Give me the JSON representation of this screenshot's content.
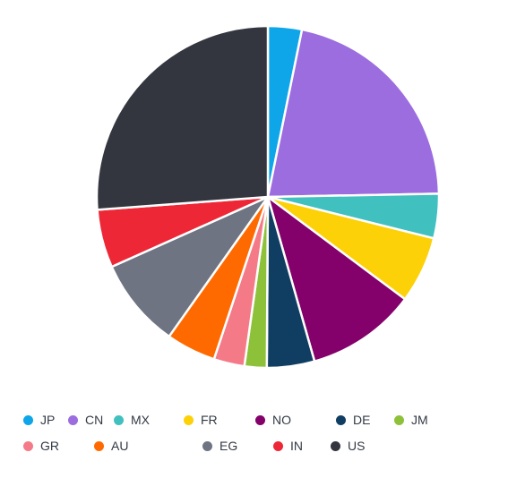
{
  "chart_data": {
    "type": "pie",
    "slices": [
      {
        "label": "JP",
        "value": 3.2,
        "color": "#0ea5e9"
      },
      {
        "label": "CN",
        "value": 21.5,
        "color": "#9b6ddf"
      },
      {
        "label": "MX",
        "value": 4.2,
        "color": "#40c0bf"
      },
      {
        "label": "FR",
        "value": 6.3,
        "color": "#fdd108"
      },
      {
        "label": "NO",
        "value": 10.4,
        "color": "#84006a"
      },
      {
        "label": "DE",
        "value": 4.5,
        "color": "#103d62"
      },
      {
        "label": "JM",
        "value": 2.1,
        "color": "#8ec13a"
      },
      {
        "label": "GR",
        "value": 2.9,
        "color": "#f57a87"
      },
      {
        "label": "AU",
        "value": 4.7,
        "color": "#ff6a00"
      },
      {
        "label": "EG",
        "value": 8.5,
        "color": "#6e7482"
      },
      {
        "label": "IN",
        "value": 5.5,
        "color": "#ee2737"
      },
      {
        "label": "US",
        "value": 26.2,
        "color": "#33363e"
      }
    ],
    "legend_position": "bottom"
  }
}
